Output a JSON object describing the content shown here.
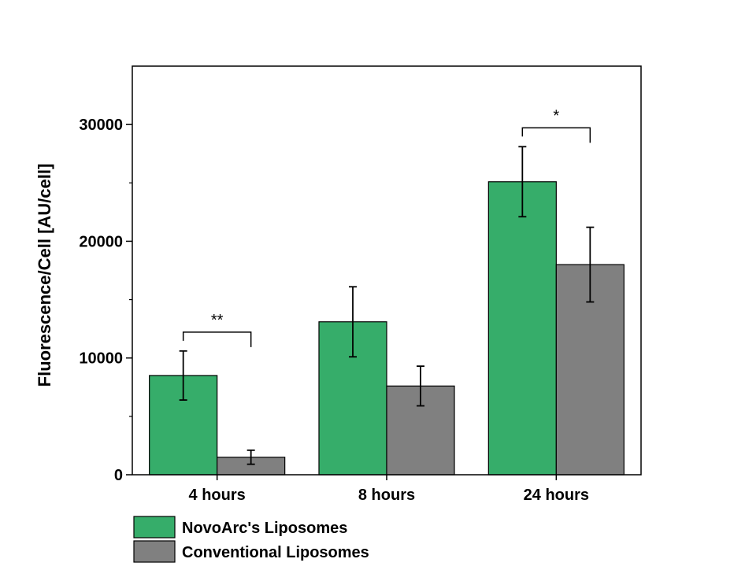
{
  "chart_data": {
    "type": "bar",
    "categories": [
      "4 hours",
      "8 hours",
      "24 hours"
    ],
    "series": [
      {
        "name": "NovoArc's Liposomes",
        "color": "#36ad6a",
        "values": [
          8500,
          13100,
          25100
        ],
        "errors": [
          2100,
          3000,
          3000
        ]
      },
      {
        "name": "Conventional Liposomes",
        "color": "#808080",
        "values": [
          1500,
          7600,
          18000
        ],
        "errors": [
          600,
          1700,
          3200
        ]
      }
    ],
    "ylabel": "Fluorescence/Cell [AU/cell]",
    "xlabel": "",
    "ylim": [
      0,
      35000
    ],
    "yticks": [
      0,
      10000,
      20000,
      30000
    ],
    "yticks_minor": [
      5000,
      15000,
      25000
    ],
    "significance": [
      {
        "category": "4 hours",
        "label": "**"
      },
      {
        "category": "24 hours",
        "label": "*"
      }
    ],
    "legend_position": "bottom-left, below plot",
    "grid": false
  }
}
